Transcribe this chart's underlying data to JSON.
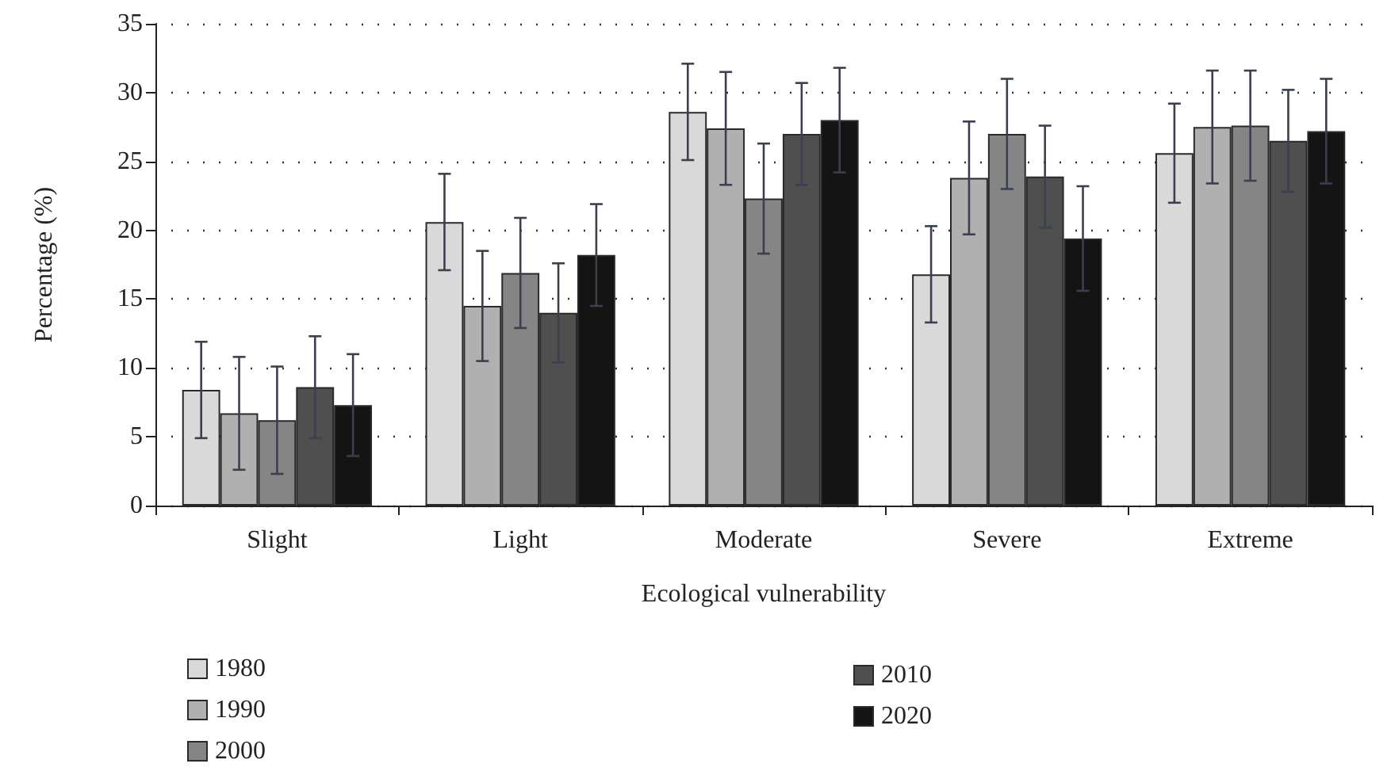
{
  "chart_data": {
    "type": "bar",
    "xlabel": "Ecological vulnerability",
    "ylabel": "Percentage (%)",
    "categories": [
      "Slight",
      "Light",
      "Moderate",
      "Severe",
      "Extreme"
    ],
    "series": [
      {
        "name": "1980",
        "color": "#d9d9d9",
        "values": [
          8.4,
          20.6,
          28.6,
          16.8,
          25.6
        ],
        "errors": [
          3.5,
          3.5,
          3.5,
          3.5,
          3.6
        ]
      },
      {
        "name": "1990",
        "color": "#b0b0b0",
        "values": [
          6.7,
          14.5,
          27.4,
          23.8,
          27.5
        ],
        "errors": [
          4.1,
          4.0,
          4.1,
          4.1,
          4.1
        ]
      },
      {
        "name": "2000",
        "color": "#858585",
        "values": [
          6.2,
          16.9,
          22.3,
          27.0,
          27.6
        ],
        "errors": [
          3.9,
          4.0,
          4.0,
          4.0,
          4.0
        ]
      },
      {
        "name": "2010",
        "color": "#4f4f4f",
        "values": [
          8.6,
          14.0,
          27.0,
          23.9,
          26.5
        ],
        "errors": [
          3.7,
          3.6,
          3.7,
          3.7,
          3.7
        ]
      },
      {
        "name": "2020",
        "color": "#141414",
        "values": [
          7.3,
          18.2,
          28.0,
          19.4,
          27.2
        ],
        "errors": [
          3.7,
          3.7,
          3.8,
          3.8,
          3.8
        ]
      }
    ],
    "ylim": [
      0,
      35
    ],
    "yticks": [
      0,
      5,
      10,
      15,
      20,
      25,
      30,
      35
    ],
    "grid": "y",
    "legend": "bottom left"
  }
}
